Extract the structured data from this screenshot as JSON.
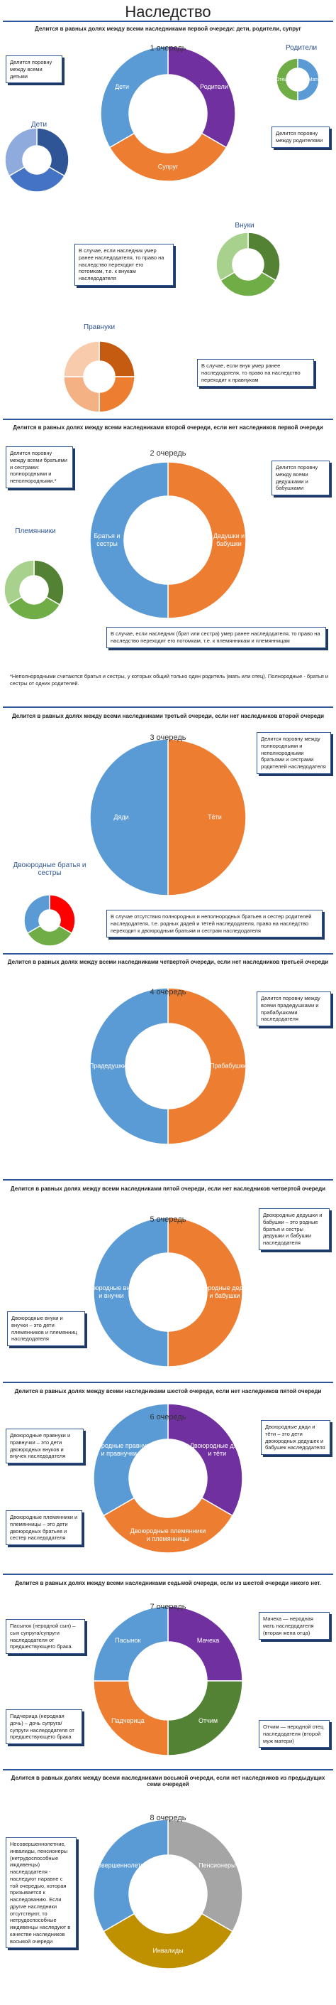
{
  "header": {
    "title": "Наследство"
  },
  "sections": [
    {
      "heading": "Делится в равных долях между всеми наследниками первой очереди: дети, родители, супруг",
      "queue": "1 очередь",
      "segments": [
        {
          "label": "Родители",
          "color": "#7030a0"
        },
        {
          "label": "Супруг",
          "color": "#ed7d31"
        },
        {
          "label": "Дети",
          "color": "#5b9bd5"
        }
      ],
      "callouts": [
        "Делится поровну между всеми детьми",
        "Делится поровну между родителями",
        "В случае, если наследник умер ранее наследодателя, то право на наследство переходит его потомкам, т.е. к внукам наследодателя",
        "В случае, если внук умер ранее наследодателя, то право на наследство переходит к правнукам"
      ],
      "sub_donuts": [
        {
          "label": "Родители",
          "colors": [
            "#5b9bd5",
            "#70ad47"
          ],
          "segment_labels": [
            "Мать",
            "Отец"
          ]
        },
        {
          "label": "Дети",
          "colors": [
            "#2f5597",
            "#4472c4",
            "#8faadc"
          ]
        },
        {
          "label": "Внуки",
          "colors": [
            "#548235",
            "#70ad47",
            "#a9d18e"
          ]
        },
        {
          "label": "Правнуки",
          "colors": [
            "#c55a11",
            "#ed7d31",
            "#f4b183",
            "#f8cbad"
          ]
        }
      ]
    },
    {
      "heading": "Делится в равных долях между всеми наследниками второй очереди, если нет наследников первой очереди",
      "queue": "2 очередь",
      "segments": [
        {
          "label": "Дедушки и бабушки",
          "color": "#ed7d31"
        },
        {
          "label": "Братья и сестры",
          "color": "#5b9bd5"
        }
      ],
      "callouts": [
        "Делится поровну между всеми братьями и сестрами: полнородными и неполнородными.*",
        "Делится поровну между всеми дедушками и бабушками",
        "В случае, если наследник (брат или сестра) умер ранее наследодателя, то право на наследство переходит его потомкам, т.е. к племянникам и племянницам"
      ],
      "sub_donuts": [
        {
          "label": "Племянники",
          "colors": [
            "#548235",
            "#70ad47",
            "#a9d18e"
          ]
        }
      ],
      "note": "*Неполнородными считаются братья и сестры, у которых общий только один родитель (мать или отец). Полнородные - братья и сестры от одних родителей."
    },
    {
      "heading": "Делится в равных долях между всеми наследниками третьей очереди, если нет наследников второй очереди",
      "queue": "3 очередь",
      "segments": [
        {
          "label": "Тёти",
          "color": "#ed7d31"
        },
        {
          "label": "Дяди",
          "color": "#5b9bd5"
        }
      ],
      "callouts": [
        "Делится поровну между полнородными и неполнородными братьями и сестрами родителей наследодателя",
        "В случае отсутствия полнородных и неполнородных братьев и сестер родителей наследодателя, т.е. родных дядей и тётей наследодателя, право на наследство переходит к двоюродным братьям и сестрам наследодателя"
      ],
      "sub_donuts": [
        {
          "label": "Двоюродные братья и сестры",
          "colors": [
            "#ff0000",
            "#70ad47",
            "#5b9bd5"
          ]
        }
      ]
    },
    {
      "heading": "Делится в равных долях между всеми наследниками четвертой очереди, если нет наследников третьей очереди",
      "queue": "4 очередь",
      "segments": [
        {
          "label": "Прабабушки",
          "color": "#ed7d31"
        },
        {
          "label": "Прадедушки",
          "color": "#5b9bd5"
        }
      ],
      "callouts": [
        "Делится поровну между всеми прадедушками и прабабушками наследодателя"
      ]
    },
    {
      "heading": "Делится в равных долях между всеми наследниками пятой очереди, если нет наследников четвертой очереди",
      "queue": "5 очередь",
      "segments": [
        {
          "label": "Двоюродные дедушки и бабушки",
          "color": "#ed7d31"
        },
        {
          "label": "Двоюродные внуки и внучки",
          "color": "#5b9bd5"
        }
      ],
      "callouts": [
        "Двоюродные дедушки и бабушки – это родные братья и сестры дедушки и бабушки наследодателя",
        "Двоюродные внуки и внучки – это дети племянников и племянниц наследодателя"
      ]
    },
    {
      "heading": "Делится в равных долях между всеми наследниками шестой очереди, если нет наследников пятой очереди",
      "queue": "6 очередь",
      "segments": [
        {
          "label": "Двоюродные дяди и тёти",
          "color": "#7030a0"
        },
        {
          "label": "Двоюродные племянники и племянницы",
          "color": "#ed7d31"
        },
        {
          "label": "Двоюродные правнуки и правнучки",
          "color": "#5b9bd5"
        }
      ],
      "callouts": [
        "Двоюродные правнуки и правнучки – это дети двоюродных внуков и внучек наследодателя",
        "Двоюродные дяди и тёти – это дети двоюродных дедушек и бабушек наследодателя",
        "Двоюродные племянники и племянницы – это дети двоюродных братьев и сестер наследодателя"
      ]
    },
    {
      "heading": "Делится в равных долях между всеми наследниками седьмой очереди, если из шестой очереди никого нет.",
      "queue": "7 очередь",
      "segments": [
        {
          "label": "Мачеха",
          "color": "#7030a0"
        },
        {
          "label": "Отчим",
          "color": "#548235"
        },
        {
          "label": "Падчерица",
          "color": "#ed7d31"
        },
        {
          "label": "Пасынок",
          "color": "#5b9bd5"
        }
      ],
      "callouts": [
        "Пасынок (неродной сын) – сын супруга/супруги наследодателя от предшествующего брака.",
        "Мачеха — неродная мать наследодателя (вторая жена отца)",
        "Падчерица (неродная дочь) – дочь супруга/супруги наследодателя от предшествующего брака",
        "Отчим — неродной отец наследодателя (второй муж матери)"
      ]
    },
    {
      "heading": "Делится в равных долях между всеми наследниками восьмой очереди, если нет наследников из предыдущих семи очередей",
      "queue": "8 очередь",
      "segments": [
        {
          "label": "Пенсионеры",
          "color": "#a5a5a5"
        },
        {
          "label": "Инвалиды",
          "color": "#bf9000"
        },
        {
          "label": "Несовершеннолетние",
          "color": "#5b9bd5"
        }
      ],
      "callouts": [
        "Несовершеннолетние, инвалиды, пенсионеры (нетрудоспособные иждивенцы) наследодателя - наследуют наравне с той очередью, которая призывается к наследованию. Если другие наследники отсутствуют, то нетрудоспособные иждивенцы наследуют в качестве наследников восьмой очереди"
      ]
    }
  ]
}
